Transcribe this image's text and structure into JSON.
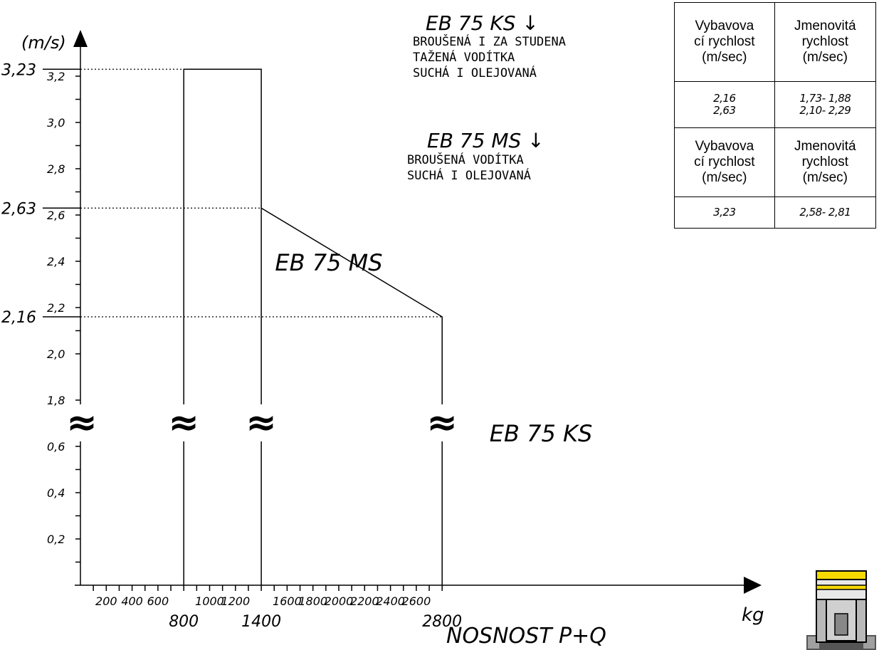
{
  "chart_data": {
    "type": "area",
    "y_unit": "(m/s)",
    "x_unit": "kg",
    "xlabel": "NOSNOST      P+Q",
    "x_ticks": [
      "200",
      "400",
      "600",
      "800",
      "1000",
      "1200",
      "1400",
      "1600",
      "1800",
      "2000",
      "2200",
      "2400",
      "2600",
      "2800"
    ],
    "y_ticks": [
      "3,2",
      "3,0",
      "2,8",
      "2,6",
      "2,4",
      "2,2",
      "2,0",
      "1,8",
      "0,6",
      "0,4",
      "0,2"
    ],
    "x_markers": [
      "800",
      "1400",
      "2800"
    ],
    "y_markers": [
      "3,23",
      "2,63",
      "2,16"
    ],
    "series": [
      {
        "name": "EB 75 MS",
        "points": [
          [
            800,
            3.23
          ],
          [
            1400,
            3.23
          ]
        ]
      },
      {
        "name": "EB 75 KS",
        "points": [
          [
            1400,
            2.63
          ],
          [
            2800,
            2.16
          ]
        ]
      }
    ],
    "region_labels": [
      "EB 75 MS",
      "EB 75 KS"
    ],
    "annotations": [
      {
        "title": "EB 75 KS",
        "arrow": "↓",
        "lines": [
          "BROUŠENÁ I ZA STUDENA",
          "TAŽENÁ VODÍTKA",
          "SUCHÁ I OLEJOVANÁ"
        ]
      },
      {
        "title": "EB 75 MS",
        "arrow": "↓",
        "lines": [
          "BROUŠENÁ VODÍTKA",
          "SUCHÁ I OLEJOVANÁ"
        ]
      }
    ],
    "break_symbol": "≈"
  },
  "table": {
    "header1": [
      "Vybavova",
      "cí rychlost",
      "(m/sec)"
    ],
    "header2": [
      "Jmenovitá",
      "rychlost",
      "(m/sec)"
    ],
    "row1_col1": [
      "2,16",
      "2,63"
    ],
    "row1_col2": [
      "1,73- 1,88",
      "2,10- 2,29"
    ],
    "row2_col1": [
      "3,23"
    ],
    "row2_col2": [
      "2,58- 2,81"
    ]
  }
}
